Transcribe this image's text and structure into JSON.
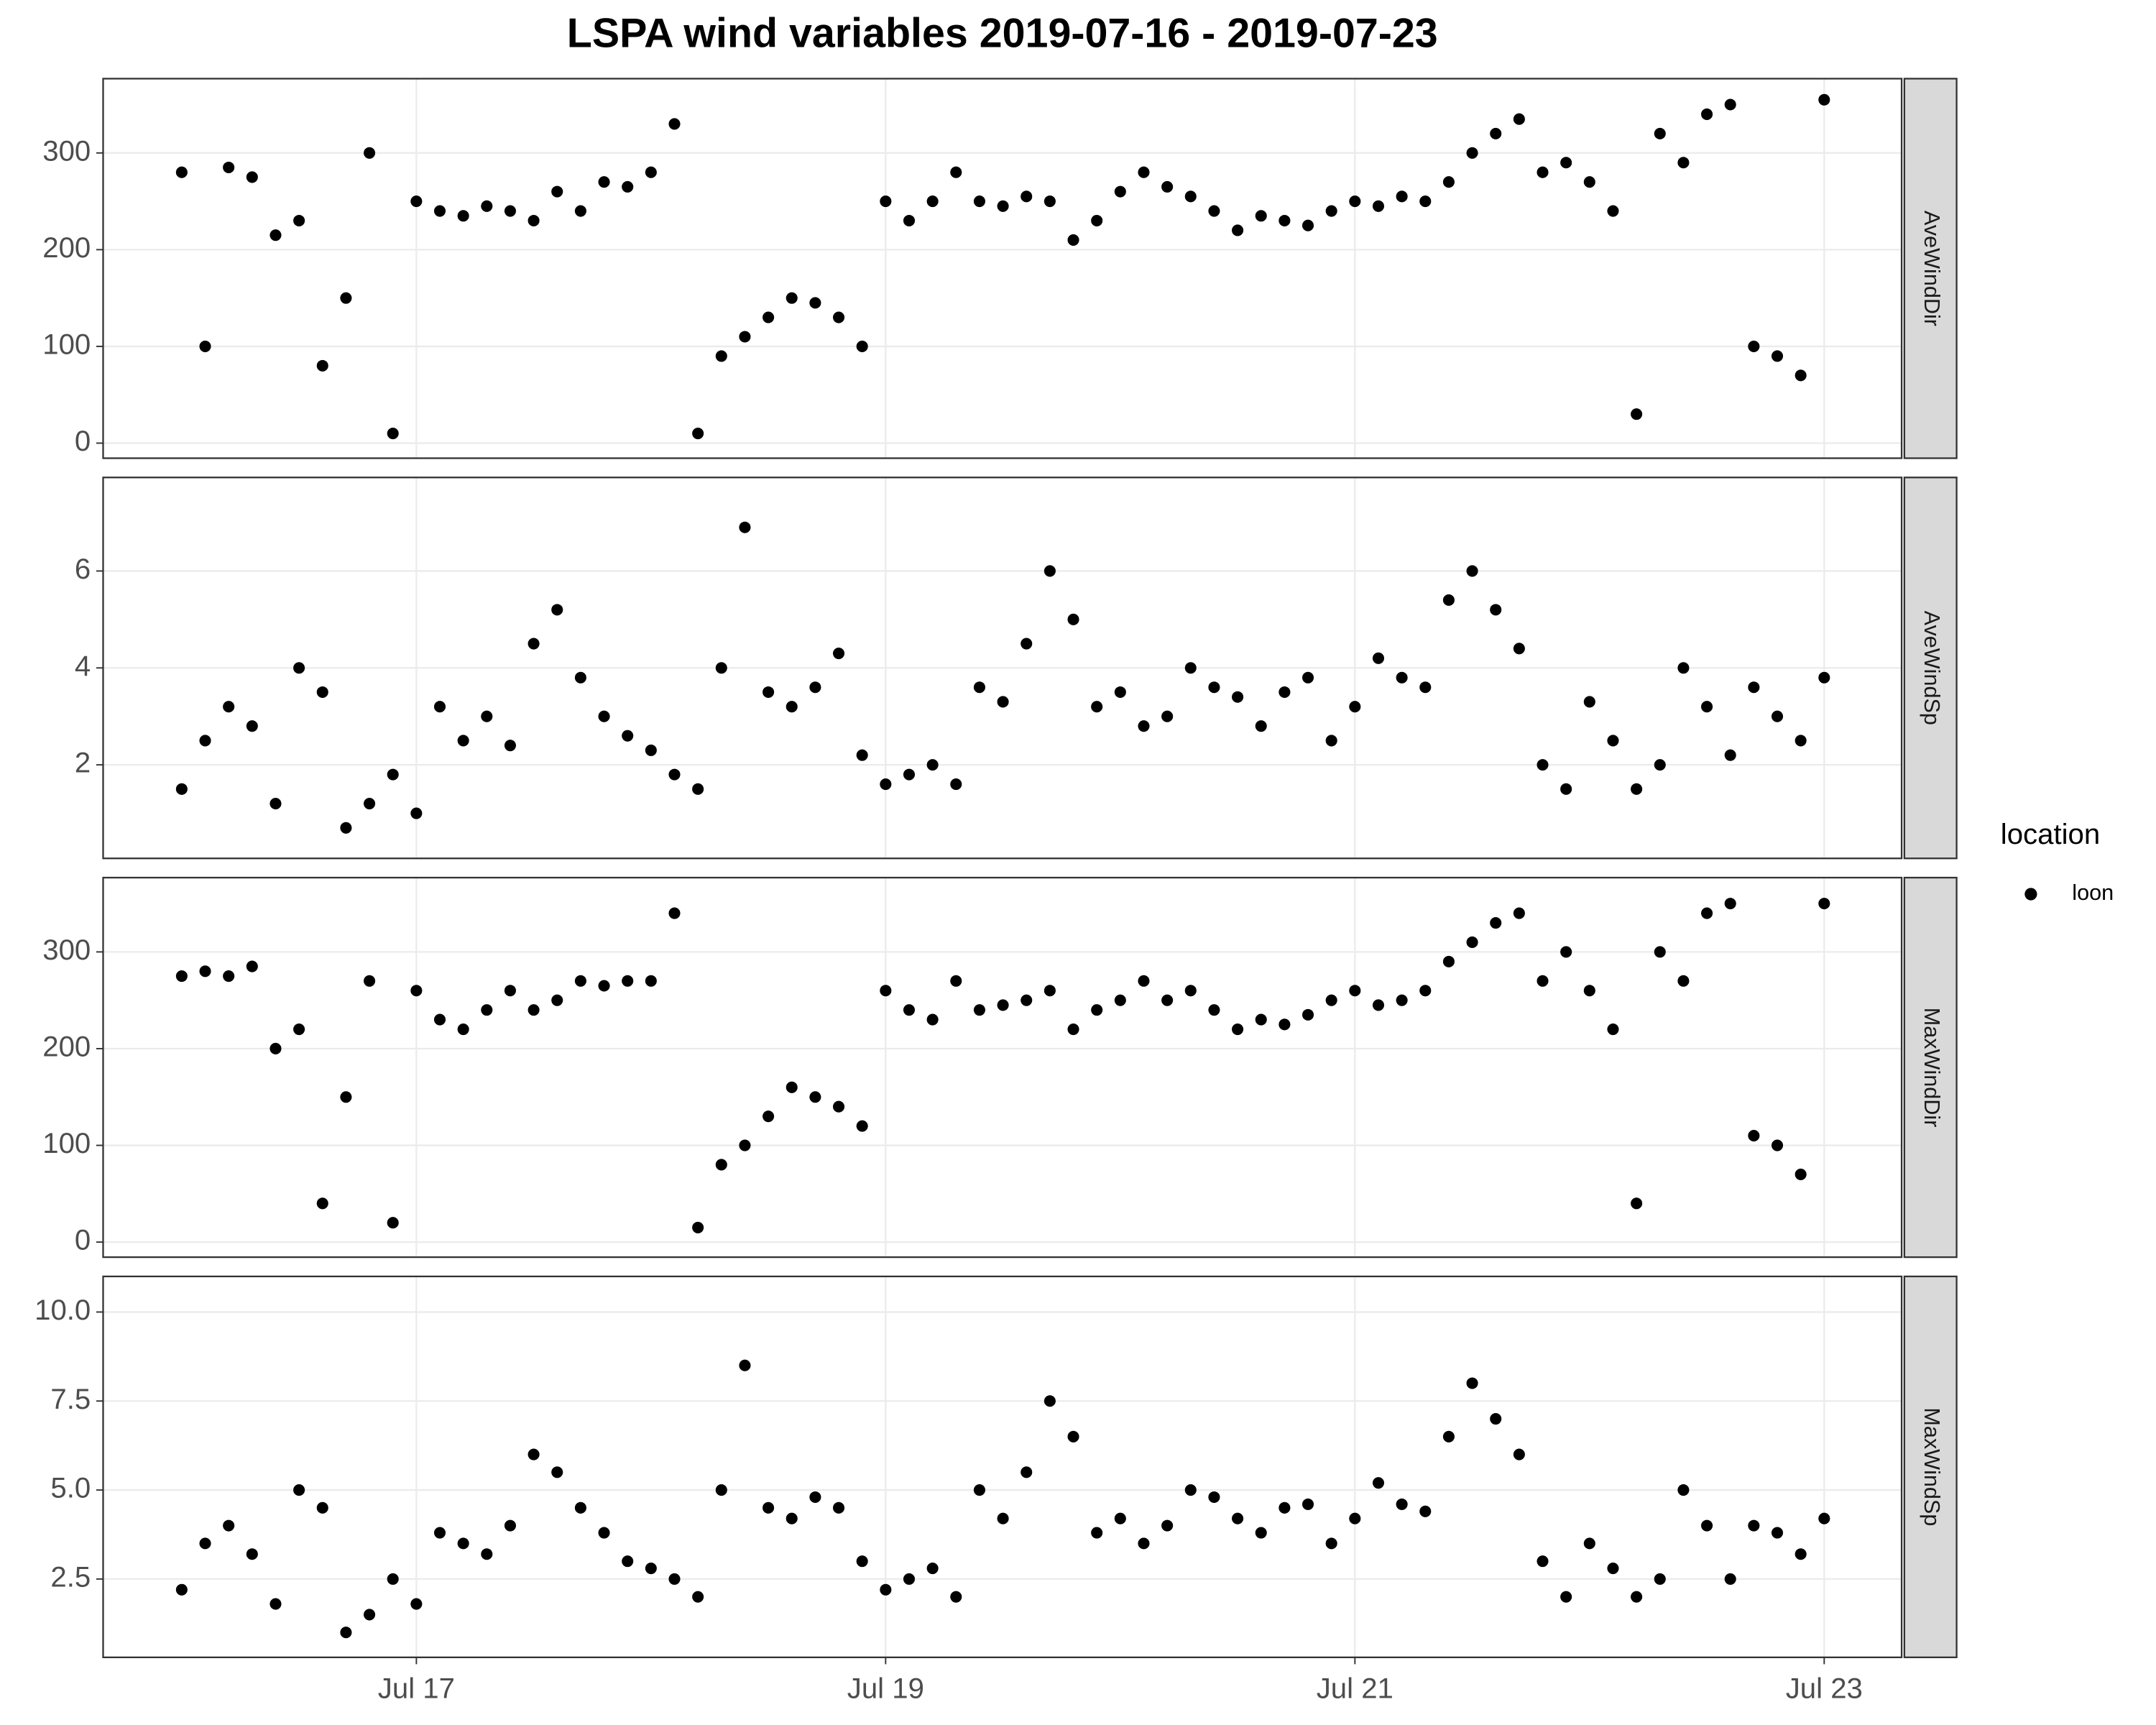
{
  "chart_data": {
    "type": "scatter",
    "title": "LSPA wind variables 2019-07-16 - 2019-07-23",
    "legend_title": "location",
    "series_name": "loon",
    "color": "#000000",
    "grid": true,
    "xlim": [
      15.665,
      23.33
    ],
    "xticks": [
      {
        "value": 17,
        "label": "Jul 17"
      },
      {
        "value": 19,
        "label": "Jul 19"
      },
      {
        "value": 21,
        "label": "Jul 21"
      },
      {
        "value": 23,
        "label": "Jul 23"
      }
    ],
    "x": [
      16.0,
      16.1,
      16.2,
      16.3,
      16.4,
      16.5,
      16.6,
      16.7,
      16.8,
      16.9,
      17.0,
      17.1,
      17.2,
      17.3,
      17.4,
      17.5,
      17.6,
      17.7,
      17.8,
      17.9,
      18.0,
      18.1,
      18.2,
      18.3,
      18.4,
      18.5,
      18.6,
      18.7,
      18.8,
      18.9,
      19.0,
      19.1,
      19.2,
      19.3,
      19.4,
      19.5,
      19.6,
      19.7,
      19.8,
      19.9,
      20.0,
      20.1,
      20.2,
      20.3,
      20.4,
      20.5,
      20.6,
      20.7,
      20.8,
      20.9,
      21.0,
      21.1,
      21.2,
      21.3,
      21.4,
      21.5,
      21.6,
      21.7,
      21.8,
      21.9,
      22.0,
      22.1,
      22.2,
      22.3,
      22.4,
      22.5,
      22.6,
      22.7,
      22.8,
      22.9,
      23.0
    ],
    "panels": [
      {
        "label": "AveWindDir",
        "ylim": [
          -15.6,
          376.8
        ],
        "yticks": [
          0,
          100,
          200,
          300
        ],
        "values": [
          280,
          100,
          285,
          275,
          215,
          230,
          80,
          150,
          300,
          10,
          250,
          240,
          235,
          245,
          240,
          230,
          260,
          240,
          270,
          265,
          280,
          330,
          10,
          90,
          110,
          130,
          150,
          145,
          130,
          100,
          250,
          230,
          250,
          280,
          250,
          245,
          255,
          250,
          210,
          230,
          260,
          280,
          265,
          255,
          240,
          220,
          235,
          230,
          225,
          240,
          250,
          245,
          255,
          250,
          270,
          300,
          320,
          335,
          280,
          290,
          270,
          240,
          30,
          320,
          290,
          340,
          350,
          100,
          90,
          70,
          355
        ]
      },
      {
        "label": "AveWindSp",
        "ylim": [
          0.07,
          7.93
        ],
        "yticks": [
          2,
          4,
          6
        ],
        "values": [
          1.5,
          2.5,
          3.2,
          2.8,
          1.2,
          4.0,
          3.5,
          0.7,
          1.2,
          1.8,
          1.0,
          3.2,
          2.5,
          3.0,
          2.4,
          4.5,
          5.2,
          3.8,
          3.0,
          2.6,
          2.3,
          1.8,
          1.5,
          4.0,
          6.9,
          3.5,
          3.2,
          3.6,
          4.3,
          2.2,
          1.6,
          1.8,
          2.0,
          1.6,
          3.6,
          3.3,
          4.5,
          6.0,
          5.0,
          3.2,
          3.5,
          2.8,
          3.0,
          4.0,
          3.6,
          3.4,
          2.8,
          3.5,
          3.8,
          2.5,
          3.2,
          4.2,
          3.8,
          3.6,
          5.4,
          6.0,
          5.2,
          4.4,
          2.0,
          1.5,
          3.3,
          2.5,
          1.5,
          2.0,
          4.0,
          3.2,
          2.2,
          3.6,
          3.0,
          2.5,
          3.8
        ]
      },
      {
        "label": "MaxWindDir",
        "ylim": [
          -15.6,
          376.8
        ],
        "yticks": [
          0,
          100,
          200,
          300
        ],
        "values": [
          275,
          280,
          275,
          285,
          200,
          220,
          40,
          150,
          270,
          20,
          260,
          230,
          220,
          240,
          260,
          240,
          250,
          270,
          265,
          270,
          270,
          340,
          15,
          80,
          100,
          130,
          160,
          150,
          140,
          120,
          260,
          240,
          230,
          270,
          240,
          245,
          250,
          260,
          220,
          240,
          250,
          270,
          250,
          260,
          240,
          220,
          230,
          225,
          235,
          250,
          260,
          245,
          250,
          260,
          290,
          310,
          330,
          340,
          270,
          300,
          260,
          220,
          40,
          300,
          270,
          340,
          350,
          110,
          100,
          70,
          350
        ]
      },
      {
        "label": "MaxWindSp",
        "ylim": [
          0.3,
          11.0
        ],
        "yticks": [
          2.5,
          {
            "value": 5,
            "label": "5.0"
          },
          7.5,
          {
            "value": 10,
            "label": "10.0"
          }
        ],
        "values": [
          2.2,
          3.5,
          4.0,
          3.2,
          1.8,
          5.0,
          4.5,
          1.0,
          1.5,
          2.5,
          1.8,
          3.8,
          3.5,
          3.2,
          4.0,
          6.0,
          5.5,
          4.5,
          3.8,
          3.0,
          2.8,
          2.5,
          2.0,
          5.0,
          8.5,
          4.5,
          4.2,
          4.8,
          4.5,
          3.0,
          2.2,
          2.5,
          2.8,
          2.0,
          5.0,
          4.2,
          5.5,
          7.5,
          6.5,
          3.8,
          4.2,
          3.5,
          4.0,
          5.0,
          4.8,
          4.2,
          3.8,
          4.5,
          4.6,
          3.5,
          4.2,
          5.2,
          4.6,
          4.4,
          6.5,
          8.0,
          7.0,
          6.0,
          3.0,
          2.0,
          3.5,
          2.8,
          2.0,
          2.5,
          5.0,
          4.0,
          2.5,
          4.0,
          3.8,
          3.2,
          4.2
        ]
      }
    ]
  }
}
